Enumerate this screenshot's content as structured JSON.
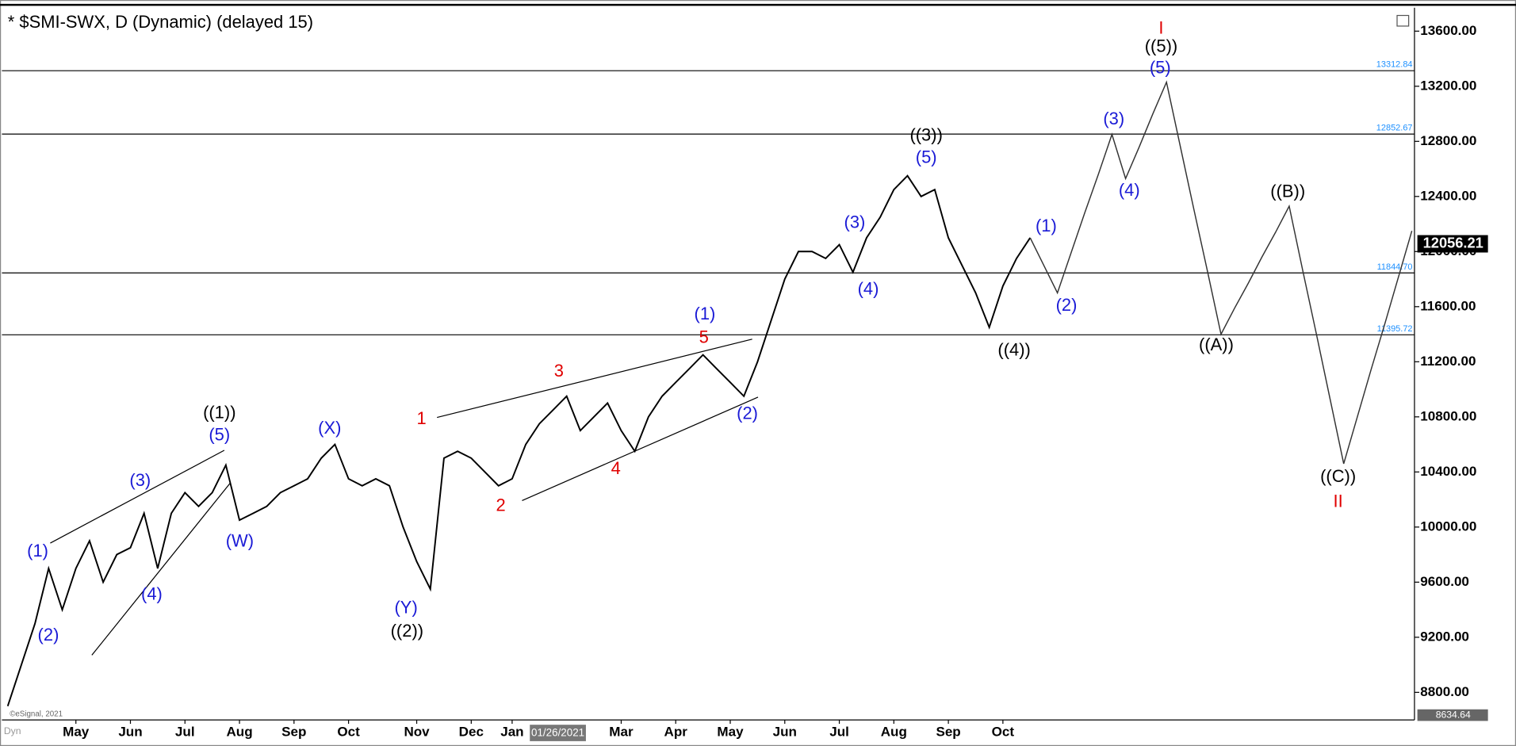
{
  "chart_data": {
    "type": "line",
    "title": "* $SMI-SWX, D (Dynamic) (delayed 15)",
    "categories": [
      null,
      null,
      null,
      null,
      null,
      "May",
      null,
      null,
      null,
      "Jun",
      null,
      null,
      null,
      "Jul",
      null,
      null,
      null,
      "Aug",
      null,
      null,
      null,
      "Sep",
      null,
      null,
      null,
      "Oct",
      null,
      null,
      null,
      null,
      "Nov",
      null,
      null,
      null,
      "Dec",
      null,
      null,
      "Jan",
      null,
      null,
      null,
      null,
      null,
      null,
      null,
      "Mar",
      null,
      null,
      null,
      "Apr",
      null,
      null,
      null,
      "May",
      null,
      null,
      null,
      "Jun",
      null,
      null,
      null,
      "Jul",
      null,
      null,
      null,
      "Aug",
      null,
      null,
      null,
      "Sep",
      null,
      null,
      null,
      "Oct",
      null,
      null,
      null,
      null,
      null,
      null,
      null,
      null,
      null,
      null,
      null,
      null,
      null,
      null,
      null,
      null,
      null,
      null,
      null,
      null,
      null,
      null,
      null,
      null,
      null,
      null,
      null,
      null,
      null,
      null
    ],
    "series": [
      {
        "color": "#000000",
        "values": [
          8700,
          9000,
          9300,
          9700,
          9400,
          9700,
          9900,
          9600,
          9800,
          9850,
          10100,
          9700,
          10100,
          10250,
          10150,
          10250,
          10450,
          10050,
          10100,
          10150,
          10250,
          10300,
          10350,
          10500,
          10600,
          10350,
          10300,
          10350,
          10300,
          10000,
          9750,
          9550,
          10500,
          10550,
          10500,
          10400,
          10300,
          10350,
          10600,
          10750,
          10850,
          10950,
          10700,
          10800,
          10900,
          10700,
          10550,
          10800,
          10950,
          11050,
          11150,
          11250,
          11150,
          11050,
          10950,
          11200,
          11500,
          11800,
          12000,
          12000,
          11950,
          12050,
          11850,
          12100,
          12250,
          12450,
          12550,
          12400,
          12450,
          12100,
          11900,
          11700,
          11450,
          11750,
          11950,
          12100,
          null,
          null,
          null,
          null,
          null,
          null,
          null,
          null,
          null,
          null,
          null,
          null,
          null,
          null,
          null,
          null,
          null,
          null,
          null,
          null,
          null,
          null,
          null,
          null,
          null,
          null,
          null,
          null
        ]
      },
      {
        "color": "#333333",
        "values": [
          null,
          null,
          null,
          null,
          null,
          null,
          null,
          null,
          null,
          null,
          null,
          null,
          null,
          null,
          null,
          null,
          null,
          null,
          null,
          null,
          null,
          null,
          null,
          null,
          null,
          null,
          null,
          null,
          null,
          null,
          null,
          null,
          null,
          null,
          null,
          null,
          null,
          null,
          null,
          null,
          null,
          null,
          null,
          null,
          null,
          null,
          null,
          null,
          null,
          null,
          null,
          null,
          null,
          null,
          null,
          null,
          null,
          null,
          null,
          null,
          null,
          null,
          null,
          null,
          null,
          null,
          null,
          null,
          null,
          null,
          null,
          null,
          null,
          null,
          null,
          12100,
          11900,
          11700,
          11990,
          12280,
          12560,
          12850,
          12530,
          12760,
          13000,
          13230,
          12770,
          12310,
          11860,
          11400,
          11590,
          11770,
          11960,
          12140,
          12330,
          11860,
          11400,
          10930,
          10460,
          10800,
          11140,
          11470,
          11810,
          12150
        ]
      }
    ],
    "ylim": [
      8600,
      13770
    ],
    "yticks": [
      {
        "value": 8800,
        "label": "8800.00"
      },
      {
        "value": 9200,
        "label": "9200.00"
      },
      {
        "value": 9600,
        "label": "9600.00"
      },
      {
        "value": 10000,
        "label": "10000.00"
      },
      {
        "value": 10400,
        "label": "10400.00"
      },
      {
        "value": 10800,
        "label": "10800.00"
      },
      {
        "value": 11200,
        "label": "11200.00"
      },
      {
        "value": 11600,
        "label": "11600.00"
      },
      {
        "value": 12000,
        "label": "12000.00"
      },
      {
        "value": 12400,
        "label": "12400.00"
      },
      {
        "value": 12800,
        "label": "12800.00"
      },
      {
        "value": 13200,
        "label": "13200.00"
      },
      {
        "value": 13600,
        "label": "13600.00"
      }
    ],
    "levels": [
      13312.84,
      12852.67,
      {
        "value": 11844.7,
        "label": "11844.70"
      },
      11395.72
    ],
    "level_color": "#000000",
    "level_label_color": "#1e90ff",
    "last_price": 12056.21,
    "low_price": 8634.64,
    "cursor_label": "01/26/2021",
    "corner_label": "Dyn",
    "watermark": "©eSignal, 2021",
    "annotations": [
      {
        "text": "(1)",
        "color": "#1a1ad6"
      },
      {
        "text": "(2)",
        "color": "#1a1ad6"
      },
      {
        "text": "(3)",
        "color": "#1a1ad6"
      },
      {
        "text": "(4)",
        "color": "#1a1ad6"
      },
      {
        "text": "(5)",
        "color": "#1a1ad6"
      },
      {
        "text": "((1))",
        "color": "#000000"
      },
      {
        "text": "(W)",
        "color": "#1a1ad6"
      },
      {
        "text": "(X)",
        "color": "#1a1ad6"
      },
      {
        "text": "(Y)",
        "color": "#1a1ad6"
      },
      {
        "text": "((2))",
        "color": "#000000"
      },
      {
        "text": "1",
        "color": "#e00000"
      },
      {
        "text": "2",
        "color": "#e00000"
      },
      {
        "text": "3",
        "color": "#e00000"
      },
      {
        "text": "4",
        "color": "#e00000"
      },
      {
        "text": "5",
        "color": "#e00000"
      },
      {
        "text": "(1)",
        "color": "#1a1ad6"
      },
      {
        "text": "(2)",
        "color": "#1a1ad6"
      },
      {
        "text": "(3)",
        "color": "#1a1ad6"
      },
      {
        "text": "(4)",
        "color": "#1a1ad6"
      },
      {
        "text": "(5)",
        "color": "#1a1ad6"
      },
      {
        "text": "((3))",
        "color": "#000000"
      },
      {
        "text": "((4))",
        "color": "#000000"
      },
      {
        "text": "(1)",
        "color": "#1a1ad6"
      },
      {
        "text": "(2)",
        "color": "#1a1ad6"
      },
      {
        "text": "(3)",
        "color": "#1a1ad6"
      },
      {
        "text": "(4)",
        "color": "#1a1ad6"
      },
      {
        "text": "(5)",
        "color": "#1a1ad6"
      },
      {
        "text": "((5))",
        "color": "#000000"
      },
      {
        "text": "I",
        "color": "#e00000"
      },
      {
        "text": "((A))",
        "color": "#000000"
      },
      {
        "text": "((B))",
        "color": "#000000"
      },
      {
        "text": "((C))",
        "color": "#000000"
      },
      {
        "text": "II",
        "color": "#e00000"
      }
    ]
  }
}
